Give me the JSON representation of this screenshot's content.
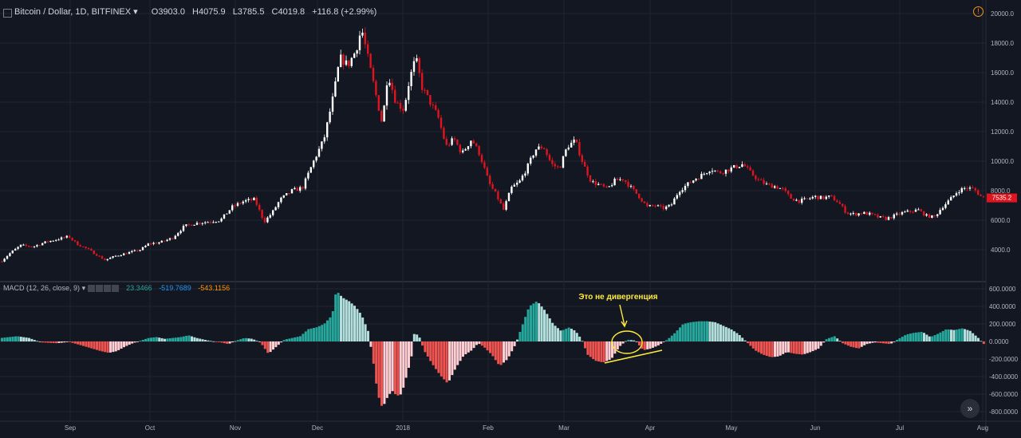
{
  "header": {
    "symbol": "Bitcoin / Dollar, 1D, BITFINEX",
    "open": "O3903.0",
    "high": "H4075.9",
    "low": "L3785.5",
    "close": "C4019.8",
    "change": "+116.8 (+2.99%)"
  },
  "macd_header": {
    "label": "MACD (12, 26, close, 9)",
    "v1": "23.3466",
    "v2": "-519.7689",
    "v3": "-543.1156"
  },
  "annotation": {
    "text": "Это не дивергенция"
  },
  "price_badge": "7535.2",
  "colors": {
    "background": "#131722",
    "up_candle": "#ffffff",
    "down_candle": "#e0141e",
    "hist_pos_strong": "#26a69a",
    "hist_pos_weak": "#b2dfdb",
    "hist_neg_strong": "#ef5350",
    "hist_neg_weak": "#ffcdd2",
    "annotation": "#ffeb3b",
    "macd_val": "#26a69a",
    "signal_val": "#2196f3",
    "hist_val": "#ff9800"
  },
  "chart_data": [
    {
      "type": "candlestick",
      "title": "Bitcoin / Dollar, 1D, BITFINEX",
      "ylim": [
        3000,
        20000
      ],
      "y_ticks": [
        "20000.0",
        "18000.0",
        "16000.0",
        "14000.0",
        "12000.0",
        "10000.0",
        "8000.0",
        "6000.0",
        "4000.0"
      ],
      "x_ticks": [
        "Sep",
        "Oct",
        "Nov",
        "Dec",
        "2018",
        "Feb",
        "Mar",
        "Apr",
        "May",
        "Jun",
        "Jul",
        "Aug"
      ],
      "close_path": [
        [
          0,
          3200
        ],
        [
          12,
          3800
        ],
        [
          25,
          4300
        ],
        [
          40,
          4200
        ],
        [
          55,
          4500
        ],
        [
          70,
          4700
        ],
        [
          85,
          4900
        ],
        [
          95,
          4400
        ],
        [
          110,
          4000
        ],
        [
          130,
          3300
        ],
        [
          145,
          3600
        ],
        [
          160,
          3800
        ],
        [
          175,
          4000
        ],
        [
          185,
          4400
        ],
        [
          200,
          4500
        ],
        [
          215,
          4800
        ],
        [
          230,
          5600
        ],
        [
          245,
          5800
        ],
        [
          260,
          5900
        ],
        [
          275,
          6000
        ],
        [
          290,
          6900
        ],
        [
          305,
          7300
        ],
        [
          318,
          7400
        ],
        [
          330,
          5900
        ],
        [
          340,
          6500
        ],
        [
          350,
          7400
        ],
        [
          365,
          8000
        ],
        [
          378,
          8200
        ],
        [
          392,
          10000
        ],
        [
          405,
          11500
        ],
        [
          417,
          14500
        ],
        [
          425,
          17000
        ],
        [
          435,
          16500
        ],
        [
          445,
          17500
        ],
        [
          452,
          19000
        ],
        [
          460,
          17000
        ],
        [
          470,
          14500
        ],
        [
          478,
          12500
        ],
        [
          485,
          16000
        ],
        [
          495,
          14000
        ],
        [
          505,
          13500
        ],
        [
          512,
          15500
        ],
        [
          520,
          17000
        ],
        [
          528,
          15000
        ],
        [
          538,
          14000
        ],
        [
          548,
          13000
        ],
        [
          558,
          11000
        ],
        [
          568,
          11500
        ],
        [
          578,
          10500
        ],
        [
          590,
          11500
        ],
        [
          600,
          10500
        ],
        [
          612,
          8500
        ],
        [
          622,
          7600
        ],
        [
          630,
          6700
        ],
        [
          640,
          8200
        ],
        [
          650,
          8600
        ],
        [
          660,
          9600
        ],
        [
          670,
          10800
        ],
        [
          680,
          11000
        ],
        [
          690,
          9800
        ],
        [
          700,
          9500
        ],
        [
          710,
          11000
        ],
        [
          720,
          11400
        ],
        [
          730,
          9800
        ],
        [
          740,
          8600
        ],
        [
          750,
          8400
        ],
        [
          760,
          8100
        ],
        [
          770,
          8700
        ],
        [
          780,
          8800
        ],
        [
          790,
          8200
        ],
        [
          800,
          7600
        ],
        [
          810,
          6900
        ],
        [
          820,
          7000
        ],
        [
          830,
          6800
        ],
        [
          840,
          7000
        ],
        [
          850,
          8000
        ],
        [
          860,
          8400
        ],
        [
          870,
          8800
        ],
        [
          880,
          9100
        ],
        [
          890,
          9500
        ],
        [
          900,
          9200
        ],
        [
          910,
          9400
        ],
        [
          920,
          9600
        ],
        [
          930,
          9800
        ],
        [
          940,
          9200
        ],
        [
          950,
          8700
        ],
        [
          960,
          8400
        ],
        [
          970,
          8300
        ],
        [
          980,
          8100
        ],
        [
          990,
          7500
        ],
        [
          1000,
          7300
        ],
        [
          1010,
          7400
        ],
        [
          1020,
          7600
        ],
        [
          1030,
          7500
        ],
        [
          1040,
          7600
        ],
        [
          1050,
          7200
        ],
        [
          1060,
          6500
        ],
        [
          1070,
          6400
        ],
        [
          1080,
          6500
        ],
        [
          1090,
          6400
        ],
        [
          1100,
          6200
        ],
        [
          1110,
          6100
        ],
        [
          1120,
          6300
        ],
        [
          1130,
          6500
        ],
        [
          1140,
          6600
        ],
        [
          1150,
          6700
        ],
        [
          1160,
          6300
        ],
        [
          1170,
          6200
        ],
        [
          1180,
          6900
        ],
        [
          1190,
          7400
        ],
        [
          1200,
          8000
        ],
        [
          1210,
          8200
        ],
        [
          1220,
          8100
        ],
        [
          1230,
          7535
        ]
      ]
    },
    {
      "type": "bar",
      "title": "MACD (12, 26, close, 9)",
      "ylim": [
        -800,
        600
      ],
      "y_ticks": [
        "600.0000",
        "400.0000",
        "200.0000",
        "0.0000",
        "-200.0000",
        "-400.0000",
        "-600.0000",
        "-800.0000"
      ],
      "histogram_path": [
        [
          0,
          40
        ],
        [
          20,
          60
        ],
        [
          35,
          40
        ],
        [
          50,
          -10
        ],
        [
          70,
          -20
        ],
        [
          85,
          -5
        ],
        [
          95,
          -30
        ],
        [
          110,
          -70
        ],
        [
          125,
          -110
        ],
        [
          135,
          -130
        ],
        [
          145,
          -110
        ],
        [
          155,
          -60
        ],
        [
          165,
          -20
        ],
        [
          175,
          10
        ],
        [
          185,
          40
        ],
        [
          195,
          50
        ],
        [
          205,
          30
        ],
        [
          215,
          40
        ],
        [
          225,
          50
        ],
        [
          235,
          70
        ],
        [
          245,
          40
        ],
        [
          260,
          10
        ],
        [
          275,
          -10
        ],
        [
          285,
          -30
        ],
        [
          295,
          10
        ],
        [
          305,
          40
        ],
        [
          315,
          30
        ],
        [
          325,
          -10
        ],
        [
          335,
          -140
        ],
        [
          345,
          -60
        ],
        [
          355,
          20
        ],
        [
          365,
          40
        ],
        [
          375,
          60
        ],
        [
          385,
          140
        ],
        [
          395,
          160
        ],
        [
          405,
          200
        ],
        [
          415,
          300
        ],
        [
          420,
          580
        ],
        [
          428,
          500
        ],
        [
          436,
          460
        ],
        [
          444,
          400
        ],
        [
          452,
          300
        ],
        [
          460,
          120
        ],
        [
          466,
          -200
        ],
        [
          472,
          -600
        ],
        [
          478,
          -760
        ],
        [
          484,
          -640
        ],
        [
          490,
          -560
        ],
        [
          496,
          -620
        ],
        [
          502,
          -600
        ],
        [
          508,
          -400
        ],
        [
          514,
          -200
        ],
        [
          518,
          100
        ],
        [
          524,
          60
        ],
        [
          530,
          -100
        ],
        [
          540,
          -250
        ],
        [
          550,
          -380
        ],
        [
          560,
          -480
        ],
        [
          570,
          -300
        ],
        [
          580,
          -160
        ],
        [
          590,
          -100
        ],
        [
          598,
          -20
        ],
        [
          605,
          -60
        ],
        [
          615,
          -150
        ],
        [
          625,
          -280
        ],
        [
          635,
          -200
        ],
        [
          645,
          -30
        ],
        [
          652,
          150
        ],
        [
          662,
          400
        ],
        [
          672,
          460
        ],
        [
          682,
          350
        ],
        [
          692,
          200
        ],
        [
          702,
          120
        ],
        [
          712,
          160
        ],
        [
          720,
          120
        ],
        [
          728,
          20
        ],
        [
          735,
          -150
        ],
        [
          745,
          -220
        ],
        [
          755,
          -240
        ],
        [
          765,
          -200
        ],
        [
          775,
          -60
        ],
        [
          785,
          20
        ],
        [
          795,
          10
        ],
        [
          805,
          -100
        ],
        [
          815,
          -80
        ],
        [
          825,
          -40
        ],
        [
          835,
          20
        ],
        [
          845,
          100
        ],
        [
          855,
          200
        ],
        [
          865,
          220
        ],
        [
          875,
          230
        ],
        [
          885,
          230
        ],
        [
          895,
          220
        ],
        [
          905,
          180
        ],
        [
          915,
          140
        ],
        [
          925,
          80
        ],
        [
          935,
          -10
        ],
        [
          945,
          -100
        ],
        [
          955,
          -150
        ],
        [
          965,
          -180
        ],
        [
          975,
          -170
        ],
        [
          985,
          -120
        ],
        [
          995,
          -140
        ],
        [
          1005,
          -150
        ],
        [
          1015,
          -120
        ],
        [
          1025,
          -80
        ],
        [
          1035,
          30
        ],
        [
          1045,
          60
        ],
        [
          1055,
          -20
        ],
        [
          1065,
          -60
        ],
        [
          1075,
          -80
        ],
        [
          1085,
          -30
        ],
        [
          1095,
          -10
        ],
        [
          1105,
          -20
        ],
        [
          1115,
          -30
        ],
        [
          1125,
          30
        ],
        [
          1135,
          80
        ],
        [
          1145,
          100
        ],
        [
          1155,
          110
        ],
        [
          1165,
          50
        ],
        [
          1175,
          90
        ],
        [
          1185,
          140
        ],
        [
          1195,
          130
        ],
        [
          1205,
          150
        ],
        [
          1215,
          120
        ],
        [
          1225,
          40
        ],
        [
          1232,
          -30
        ]
      ]
    }
  ]
}
